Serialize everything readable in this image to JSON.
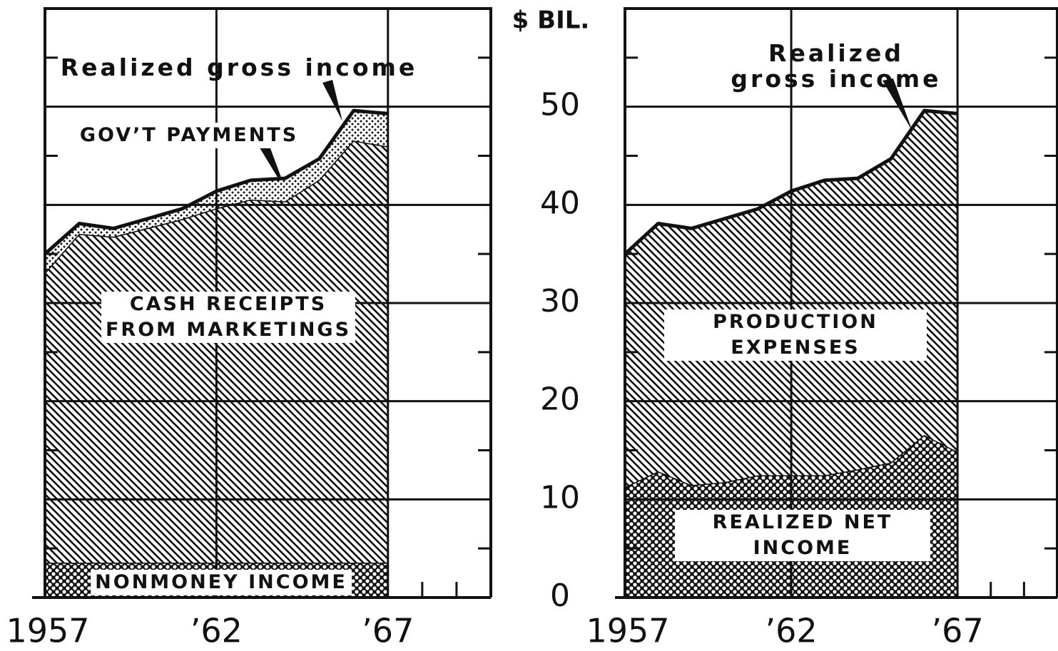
{
  "chart_data": [
    {
      "type": "stacked_area",
      "annotation": "Realized gross income",
      "ylabel": "$ BIL.",
      "x": [
        1957,
        1958,
        1959,
        1960,
        1961,
        1962,
        1963,
        1964,
        1965,
        1966,
        1967
      ],
      "series": [
        {
          "name": "NONMONEY INCOME",
          "pattern": "crosshatch",
          "values": [
            3.5,
            3.5,
            3.5,
            3.5,
            3.5,
            3.5,
            3.5,
            3.5,
            3.5,
            3.5,
            3.5
          ]
        },
        {
          "name": "CASH RECEIPTS\nFROM MARKETINGS",
          "pattern": "hatch",
          "values": [
            29.5,
            33.5,
            33.2,
            34.1,
            35.0,
            36.1,
            37.0,
            36.8,
            39.0,
            43.0,
            42.4
          ]
        },
        {
          "name": "GOV’T PAYMENTS",
          "pattern": "dots",
          "values": [
            2.0,
            1.1,
            0.9,
            1.0,
            1.1,
            1.8,
            2.0,
            2.4,
            2.2,
            3.1,
            3.4
          ]
        }
      ],
      "xlim": [
        1957,
        1970
      ],
      "xticks": [
        {
          "value": 1957,
          "label": "1957"
        },
        {
          "value": 1962,
          "label": "’62"
        },
        {
          "value": 1967,
          "label": "’67"
        }
      ],
      "minor_xticks": [
        1968,
        1969
      ],
      "ylim": [
        0,
        60
      ],
      "yticks": [
        0,
        10,
        20,
        30,
        40,
        50
      ],
      "minor_yticks": [
        5,
        15,
        25,
        35,
        45,
        55
      ],
      "grid": true
    },
    {
      "type": "stacked_area",
      "annotation": "Realized gross income",
      "x": [
        1957,
        1958,
        1959,
        1960,
        1961,
        1962,
        1963,
        1964,
        1965,
        1966,
        1967
      ],
      "series": [
        {
          "name": "REALIZED NET INCOME",
          "pattern": "crosshatch",
          "values": [
            11.2,
            12.8,
            11.4,
            11.7,
            12.4,
            12.4,
            12.4,
            13.0,
            13.7,
            16.5,
            14.8
          ]
        },
        {
          "name": "PRODUCTION EXPENSES",
          "pattern": "hatch",
          "values": [
            23.8,
            25.3,
            26.2,
            26.9,
            27.2,
            29.0,
            30.1,
            29.7,
            31.0,
            33.1,
            34.5
          ]
        }
      ],
      "xlim": [
        1957,
        1970
      ],
      "xticks": [
        {
          "value": 1957,
          "label": "1957"
        },
        {
          "value": 1962,
          "label": "’62"
        },
        {
          "value": 1967,
          "label": "’67"
        }
      ],
      "minor_xticks": [
        1968,
        1969
      ],
      "ylim": [
        0,
        60
      ],
      "yticks": [
        0,
        10,
        20,
        30,
        40,
        50
      ],
      "minor_yticks": [
        5,
        15,
        25,
        35,
        45,
        55
      ],
      "grid": true
    }
  ]
}
